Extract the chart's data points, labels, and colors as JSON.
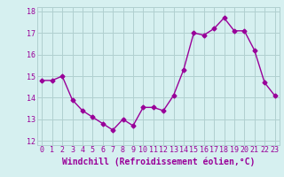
{
  "x": [
    0,
    1,
    2,
    3,
    4,
    5,
    6,
    7,
    8,
    9,
    10,
    11,
    12,
    13,
    14,
    15,
    16,
    17,
    18,
    19,
    20,
    21,
    22,
    23
  ],
  "y": [
    14.8,
    14.8,
    15.0,
    13.9,
    13.4,
    13.1,
    12.8,
    12.5,
    13.0,
    12.7,
    13.55,
    13.55,
    13.4,
    14.1,
    15.3,
    17.0,
    16.9,
    17.2,
    17.7,
    17.1,
    17.1,
    16.2,
    14.7,
    14.1
  ],
  "line_color": "#990099",
  "marker": "D",
  "marker_size": 2.5,
  "bg_color": "#d6f0f0",
  "grid_color": "#b0d0d0",
  "xlabel": "Windchill (Refroidissement éolien,°C)",
  "xlim": [
    -0.5,
    23.5
  ],
  "ylim": [
    11.8,
    18.2
  ],
  "yticks": [
    12,
    13,
    14,
    15,
    16,
    17,
    18
  ],
  "xticks": [
    0,
    1,
    2,
    3,
    4,
    5,
    6,
    7,
    8,
    9,
    10,
    11,
    12,
    13,
    14,
    15,
    16,
    17,
    18,
    19,
    20,
    21,
    22,
    23
  ],
  "tick_fontsize": 6.0,
  "xlabel_fontsize": 7.0
}
